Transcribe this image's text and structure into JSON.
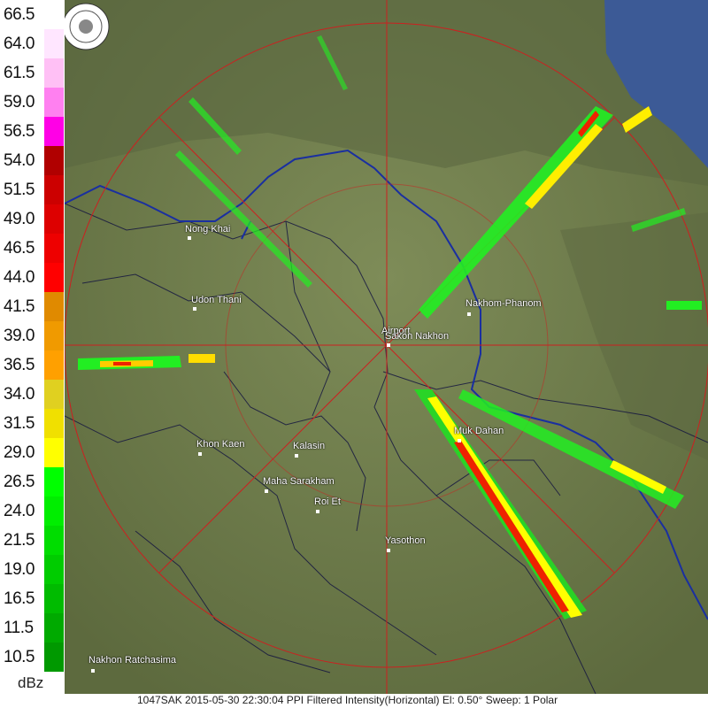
{
  "legend": {
    "unit": "dBz",
    "levels": [
      {
        "label": "66.5",
        "color": "#ffffff"
      },
      {
        "label": "64.0",
        "color": "#ffe6ff"
      },
      {
        "label": "61.5",
        "color": "#ffc0f5"
      },
      {
        "label": "59.0",
        "color": "#ff80f0"
      },
      {
        "label": "56.5",
        "color": "#ff00e6"
      },
      {
        "label": "54.0",
        "color": "#b00000"
      },
      {
        "label": "51.5",
        "color": "#cc0000"
      },
      {
        "label": "49.0",
        "color": "#dd0000"
      },
      {
        "label": "46.5",
        "color": "#ee0000"
      },
      {
        "label": "44.0",
        "color": "#ff0000"
      },
      {
        "label": "41.5",
        "color": "#e08a00"
      },
      {
        "label": "39.0",
        "color": "#f09a00"
      },
      {
        "label": "36.5",
        "color": "#ffa000"
      },
      {
        "label": "34.0",
        "color": "#e0d020"
      },
      {
        "label": "31.5",
        "color": "#f0e000"
      },
      {
        "label": "29.0",
        "color": "#ffff00"
      },
      {
        "label": "26.5",
        "color": "#00ff00"
      },
      {
        "label": "24.0",
        "color": "#00ee00"
      },
      {
        "label": "21.5",
        "color": "#00dd00"
      },
      {
        "label": "19.0",
        "color": "#00cc00"
      },
      {
        "label": "16.5",
        "color": "#00bb00"
      },
      {
        "label": "11.5",
        "color": "#00aa00"
      },
      {
        "label": "10.5",
        "color": "#009900"
      }
    ]
  },
  "cities": [
    {
      "name": "Nong Khai"
    },
    {
      "name": "Udon Thani"
    },
    {
      "name": "Nakhom-Phanom"
    },
    {
      "name": "Airport"
    },
    {
      "name": "Sakon Nakhon"
    },
    {
      "name": "Muk Dahan"
    },
    {
      "name": "Khon Kaen"
    },
    {
      "name": "Kalasin"
    },
    {
      "name": "Maha Sarakham"
    },
    {
      "name": "Roi Et"
    },
    {
      "name": "Yasothon"
    },
    {
      "name": "Nakhon Ratchasima"
    }
  ],
  "footer": {
    "text": "1047SAK 2015-05-30 22:30:04 PPI Filtered Intensity(Horizontal)  El: 0.50°  Sweep: 1 Polar"
  },
  "colors": {
    "terrain": "#6b7a4a",
    "sea": "#3c5a96",
    "rings": "#cc2020",
    "borders": "#1a2fa0"
  }
}
